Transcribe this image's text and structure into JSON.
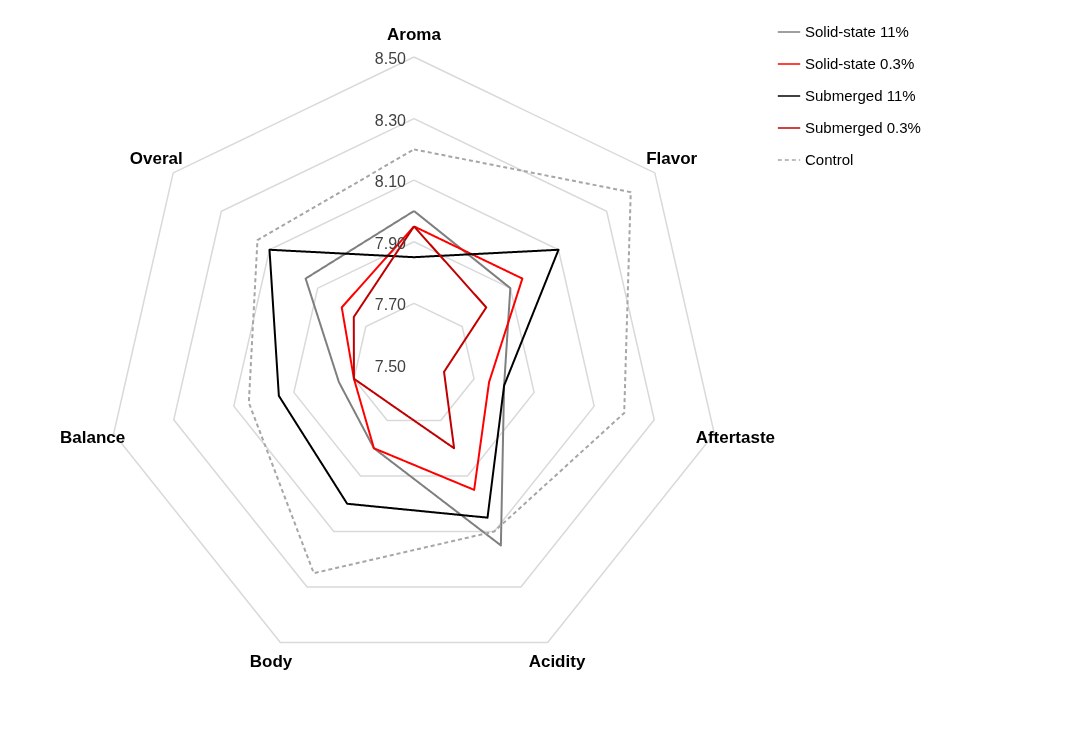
{
  "chart_data": {
    "type": "radar",
    "categories": [
      "Aroma",
      "Flavor",
      "Aftertaste",
      "Acidity",
      "Body",
      "Balance",
      "Overal"
    ],
    "ylim": [
      7.5,
      8.5
    ],
    "yticks": [
      {
        "value": 7.5,
        "label": "7.50"
      },
      {
        "value": 7.7,
        "label": "7.70"
      },
      {
        "value": 7.9,
        "label": "7.90"
      },
      {
        "value": 8.1,
        "label": "8.10"
      },
      {
        "value": 8.3,
        "label": "8.30"
      },
      {
        "value": 8.5,
        "label": "8.50"
      }
    ],
    "grid": true,
    "legend": "top right",
    "series": [
      {
        "name": "Solid-state 11%",
        "color": "#7f7f7f",
        "line_style": "solid",
        "values": [
          8.0,
          7.9,
          7.8,
          8.15,
          7.8,
          7.75,
          7.95
        ]
      },
      {
        "name": "Solid-state 0.3%",
        "color": "#ff0000",
        "line_style": "solid",
        "values": [
          7.95,
          7.95,
          7.75,
          7.95,
          7.8,
          7.7,
          7.8
        ]
      },
      {
        "name": "Submerged 11%",
        "color": "#000000",
        "line_style": "solid",
        "values": [
          7.85,
          8.1,
          7.8,
          8.05,
          8.0,
          7.95,
          8.1
        ]
      },
      {
        "name": "Submerged 0.3%",
        "color": "#c00000",
        "line_style": "solid",
        "values": [
          7.95,
          7.8,
          7.6,
          7.8,
          7.65,
          7.7,
          7.75
        ]
      },
      {
        "name": "Control",
        "color": "#a6a6a6",
        "line_style": "dashed",
        "values": [
          8.2,
          8.4,
          8.2,
          8.1,
          8.25,
          8.05,
          8.15
        ]
      }
    ]
  }
}
